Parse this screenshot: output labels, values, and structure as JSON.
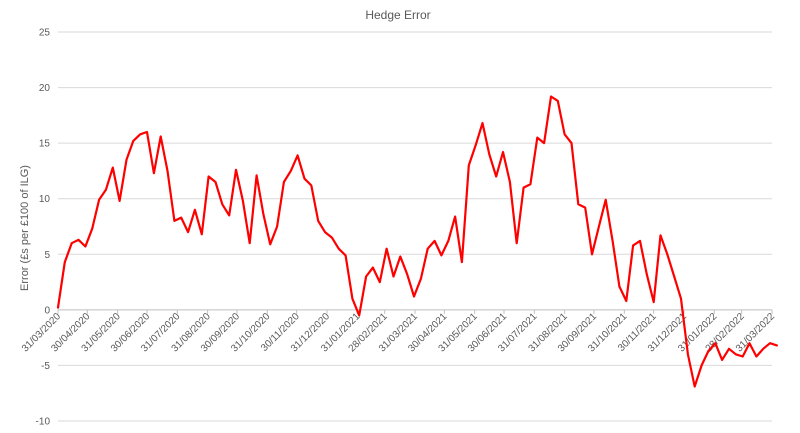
{
  "chart_data": {
    "type": "line",
    "title": "Hedge Error",
    "xlabel": "",
    "ylabel": "Error  (£s per £100 of ILG)",
    "ylim": [
      -10,
      25
    ],
    "yticks": [
      -10,
      -5,
      0,
      5,
      10,
      15,
      20,
      25
    ],
    "grid": "horizontal",
    "legend": "none",
    "line_color": "#FF0000",
    "x_tick_labels": [
      "31/03/2020",
      "30/04/2020",
      "31/05/2020",
      "30/06/2020",
      "31/07/2020",
      "31/08/2020",
      "30/09/2020",
      "31/10/2020",
      "30/11/2020",
      "31/12/2020",
      "31/01/2021",
      "28/02/2021",
      "31/03/2021",
      "30/04/2021",
      "31/05/2021",
      "30/06/2021",
      "31/07/2021",
      "31/08/2021",
      "30/09/2021",
      "31/10/2021",
      "30/11/2021",
      "31/12/2021",
      "31/01/2022",
      "28/02/2022",
      "31/03/2022"
    ],
    "series": [
      {
        "x": [
          "31/03/2020",
          "07/04/2020",
          "14/04/2020",
          "21/04/2020",
          "28/04/2020",
          "05/05/2020",
          "12/05/2020",
          "19/05/2020",
          "26/05/2020",
          "02/06/2020",
          "09/06/2020",
          "16/06/2020",
          "23/06/2020",
          "30/06/2020",
          "07/07/2020",
          "14/07/2020",
          "21/07/2020",
          "28/07/2020",
          "04/08/2020",
          "11/08/2020",
          "18/08/2020",
          "25/08/2020",
          "01/09/2020",
          "08/09/2020",
          "15/09/2020",
          "22/09/2020",
          "29/09/2020",
          "06/10/2020",
          "13/10/2020",
          "20/10/2020",
          "27/10/2020",
          "03/11/2020",
          "10/11/2020",
          "17/11/2020",
          "24/11/2020",
          "01/12/2020",
          "08/12/2020",
          "15/12/2020",
          "22/12/2020",
          "29/12/2020",
          "05/01/2021",
          "12/01/2021",
          "19/01/2021",
          "26/01/2021",
          "02/02/2021",
          "09/02/2021",
          "16/02/2021",
          "23/02/2021",
          "02/03/2021",
          "09/03/2021",
          "16/03/2021",
          "23/03/2021",
          "30/03/2021",
          "06/04/2021",
          "13/04/2021",
          "20/04/2021",
          "27/04/2021",
          "04/05/2021",
          "11/05/2021",
          "18/05/2021",
          "25/05/2021",
          "01/06/2021",
          "08/06/2021",
          "15/06/2021",
          "22/06/2021",
          "29/06/2021",
          "06/07/2021",
          "13/07/2021",
          "20/07/2021",
          "27/07/2021",
          "03/08/2021",
          "10/08/2021",
          "17/08/2021",
          "24/08/2021",
          "31/08/2021",
          "07/09/2021",
          "14/09/2021",
          "21/09/2021",
          "28/09/2021",
          "05/10/2021",
          "12/10/2021",
          "19/10/2021",
          "26/10/2021",
          "02/11/2021",
          "09/11/2021",
          "16/11/2021",
          "23/11/2021",
          "30/11/2021",
          "07/12/2021",
          "14/12/2021",
          "21/12/2021",
          "28/12/2021",
          "04/01/2022",
          "11/01/2022",
          "18/01/2022",
          "25/01/2022",
          "01/02/2022",
          "08/02/2022",
          "15/02/2022",
          "22/02/2022",
          "01/03/2022",
          "08/03/2022",
          "15/03/2022",
          "22/03/2022",
          "29/03/2022",
          "05/04/2022"
        ],
        "values": [
          0.2,
          4.3,
          6.0,
          6.3,
          5.7,
          7.3,
          9.9,
          10.8,
          12.8,
          9.8,
          13.5,
          15.2,
          15.8,
          16.0,
          12.3,
          15.6,
          12.5,
          8.0,
          8.3,
          7.0,
          9.0,
          6.8,
          12.0,
          11.5,
          9.5,
          8.5,
          12.6,
          9.8,
          6.0,
          12.1,
          8.6,
          5.9,
          7.5,
          11.5,
          12.5,
          13.9,
          11.8,
          11.2,
          8.0,
          7.0,
          6.5,
          5.5,
          4.9,
          1.0,
          -0.5,
          3.0,
          3.8,
          2.5,
          5.5,
          3.0,
          4.8,
          3.2,
          1.2,
          2.8,
          5.5,
          6.2,
          4.9,
          6.2,
          8.4,
          4.3,
          13.0,
          14.8,
          16.8,
          14.0,
          12.0,
          14.2,
          11.5,
          6.0,
          11.0,
          11.3,
          15.5,
          15.0,
          19.2,
          18.8,
          15.8,
          15.0,
          9.5,
          9.2,
          5.0,
          7.5,
          9.9,
          6.2,
          2.1,
          0.8,
          5.8,
          6.2,
          3.2,
          0.7,
          6.7,
          5.0,
          3.0,
          1.0,
          -4.0,
          -6.9,
          -5.0,
          -3.7,
          -3.0,
          -4.5,
          -3.5,
          -4.0,
          -4.2,
          -3.0,
          -4.2,
          -3.5,
          -3.0,
          -3.2
        ]
      }
    ]
  }
}
